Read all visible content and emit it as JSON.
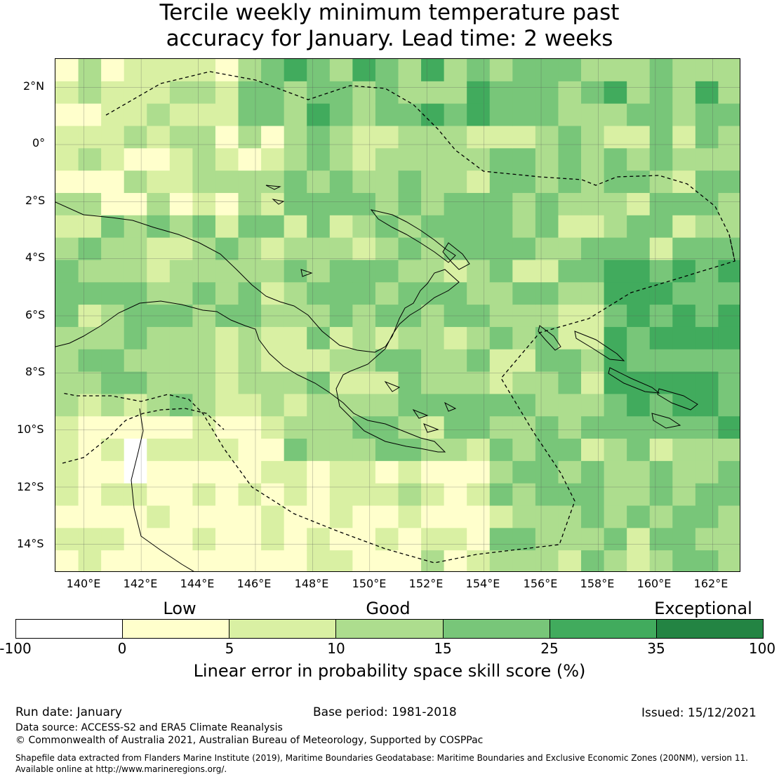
{
  "title": {
    "line1": "Tercile weekly minimum temperature past",
    "line2": "accuracy for January. Lead time: 2 weeks"
  },
  "map": {
    "lat_ticks": [
      "2°N",
      "0°",
      "2°S",
      "4°S",
      "6°S",
      "8°S",
      "10°S",
      "12°S",
      "14°S"
    ],
    "lon_ticks": [
      "140°E",
      "142°E",
      "144°E",
      "146°E",
      "148°E",
      "150°E",
      "152°E",
      "154°E",
      "156°E",
      "158°E",
      "160°E",
      "162°E"
    ],
    "extent": {
      "lon_min": 139.0,
      "lon_max": 163.0,
      "lat_min": -15.0,
      "lat_max": 3.0
    },
    "grid_resolution_deg": 0.8,
    "gridlines": true,
    "eez_boundary_style": "dashed",
    "coastline_color": "#000000"
  },
  "legend": {
    "categories": [
      {
        "label": "Low"
      },
      {
        "label": "Good"
      },
      {
        "label": "Exceptional"
      }
    ],
    "tick_labels": [
      "-100",
      "0",
      "5",
      "10",
      "15",
      "25",
      "35",
      "100"
    ],
    "colors": [
      "#ffffff",
      "#ffffcc",
      "#d9f0a3",
      "#addd8e",
      "#78c679",
      "#41ab5d",
      "#238443"
    ],
    "axis_label": "Linear error in probability space skill score (%)"
  },
  "footer": {
    "run_date": "Run date: January",
    "base_period": "Base period: 1981-2018",
    "issued": "Issued: 15/12/2021",
    "data_source": "Data source: ACCESS-S2 and ERA5 Climate Reanalysis",
    "copyright": "© Commonwealth of Australia 2021, Australian Bureau of Meteorology, Supported by COSPPac",
    "shapefile_line1": "Shapefile data extracted from Flanders Marine Institute (2019), Maritime Boundaries Geodatabase: Maritime Boundaries and Exclusive Economic Zones (200NM), version 11.",
    "shapefile_line2": "Available online at http://www.marineregions.org/."
  }
}
